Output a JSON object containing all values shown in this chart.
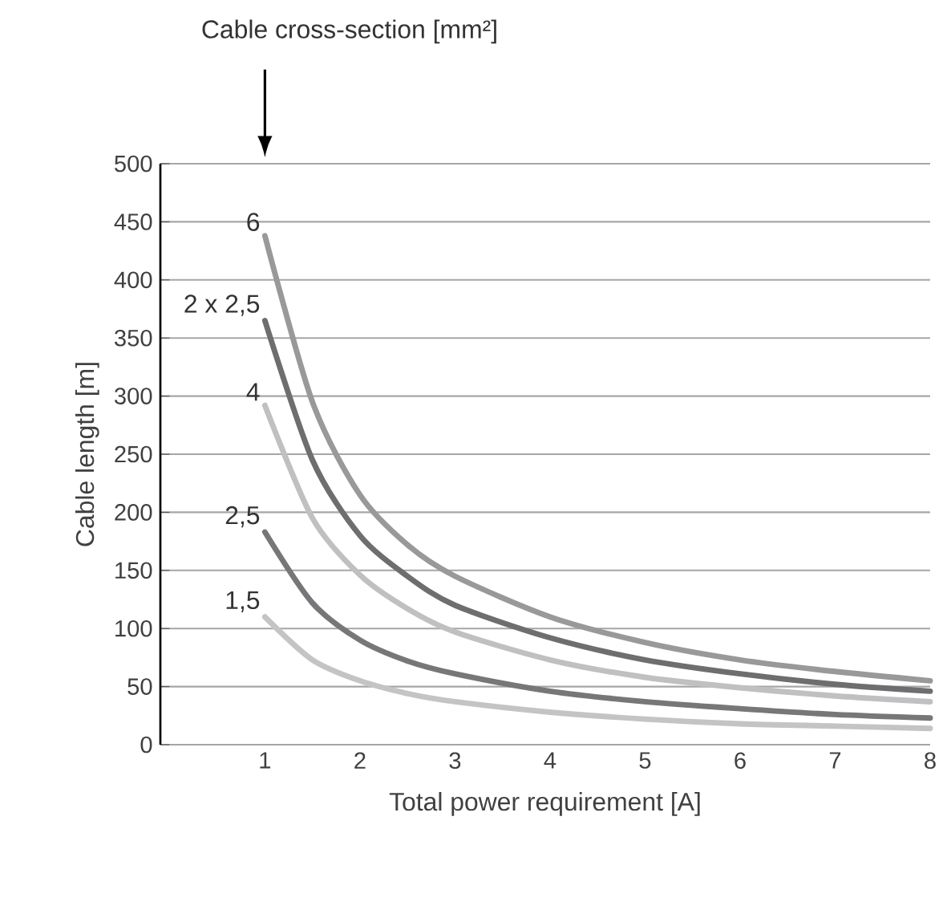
{
  "chart_data": {
    "type": "line",
    "xlabel": "Total power requirement [A]",
    "ylabel": "Cable length [m]",
    "x": [
      1,
      1.5,
      2,
      2.5,
      3,
      4,
      5,
      6,
      7,
      8
    ],
    "series": [
      {
        "name": "6",
        "color": "#999999",
        "values": [
          438,
          295,
          215,
          172,
          145,
          110,
          88,
          73,
          63,
          55
        ]
      },
      {
        "name": "2 x 2,5",
        "color": "#6e6e70",
        "values": [
          365,
          245,
          180,
          145,
          120,
          92,
          73,
          61,
          52,
          46
        ]
      },
      {
        "name": "4",
        "color": "#c0c0c2",
        "values": [
          292,
          195,
          146,
          117,
          97,
          73,
          58,
          49,
          42,
          37
        ]
      },
      {
        "name": "2,5",
        "color": "#77777a",
        "values": [
          183,
          122,
          90,
          72,
          61,
          46,
          37,
          31,
          26,
          23
        ]
      },
      {
        "name": "1,5",
        "color": "#c4c4c4",
        "values": [
          110,
          73,
          55,
          44,
          37,
          28,
          22,
          18,
          16,
          14
        ]
      }
    ],
    "xlim": [
      -0.1,
      8
    ],
    "xticks": [
      1,
      2,
      3,
      4,
      5,
      6,
      7,
      8
    ],
    "ylim": [
      0,
      500
    ],
    "yticks": [
      0,
      50,
      100,
      150,
      200,
      250,
      300,
      350,
      400,
      450,
      500
    ],
    "grid": "y",
    "legend": false,
    "marker": "none",
    "line_style": "solid",
    "annotations": [
      "Cable cross-section [mm²]"
    ]
  }
}
